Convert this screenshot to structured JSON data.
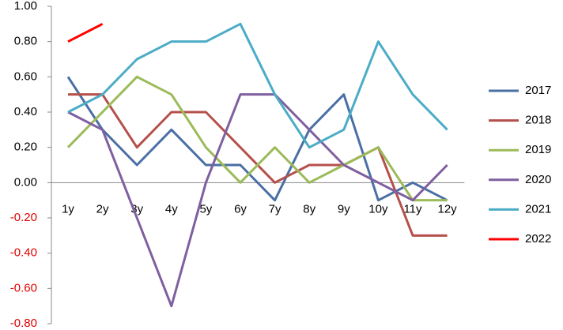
{
  "chart_data": {
    "type": "line",
    "categories": [
      "1y",
      "2y",
      "3y",
      "4y",
      "5y",
      "6y",
      "7y",
      "8y",
      "9y",
      "10y",
      "11y",
      "12y"
    ],
    "series": [
      {
        "name": "2017",
        "color": "#4a6fa5",
        "values": [
          0.6,
          0.3,
          0.1,
          0.3,
          0.1,
          0.1,
          -0.1,
          0.3,
          0.5,
          -0.1,
          0,
          -0.1
        ]
      },
      {
        "name": "2018",
        "color": "#b5504b",
        "values": [
          0.5,
          0.5,
          0.2,
          0.4,
          0.4,
          0.2,
          0,
          0.1,
          0.1,
          0.2,
          -0.3,
          -0.3
        ]
      },
      {
        "name": "2019",
        "color": "#9bbb59",
        "values": [
          0.2,
          0.4,
          0.6,
          0.5,
          0.2,
          0,
          0.2,
          0,
          0.1,
          0.2,
          -0.1,
          -0.1
        ]
      },
      {
        "name": "2020",
        "color": "#7f5f9f",
        "values": [
          0.4,
          0.3,
          -0.2,
          -0.7,
          0,
          0.5,
          0.5,
          0.3,
          0.1,
          0,
          -0.1,
          0.1
        ]
      },
      {
        "name": "2021",
        "color": "#4bacc6",
        "values": [
          0.4,
          0.5,
          0.7,
          0.8,
          0.8,
          0.9,
          0.5,
          0.2,
          0.3,
          0.8,
          0.5,
          0.3
        ]
      },
      {
        "name": "2022",
        "color": "#ff0000",
        "values": [
          0.8,
          0.9,
          null,
          null,
          null,
          null,
          null,
          null,
          null,
          null,
          null,
          null
        ]
      }
    ],
    "ylim": [
      -0.8,
      1.0
    ],
    "yticks": [
      {
        "value": -0.8,
        "label": "-0.80"
      },
      {
        "value": -0.6,
        "label": "-0.60"
      },
      {
        "value": -0.4,
        "label": "-0.40"
      },
      {
        "value": -0.2,
        "label": "-0.20"
      },
      {
        "value": 0,
        "label": "0.00"
      },
      {
        "value": 0.2,
        "label": "0.20"
      },
      {
        "value": 0.4,
        "label": "0.40"
      },
      {
        "value": 0.6,
        "label": "0.60"
      },
      {
        "value": 0.8,
        "label": "0.80"
      },
      {
        "value": 1.0,
        "label": "1.00"
      }
    ],
    "legend": "right"
  }
}
